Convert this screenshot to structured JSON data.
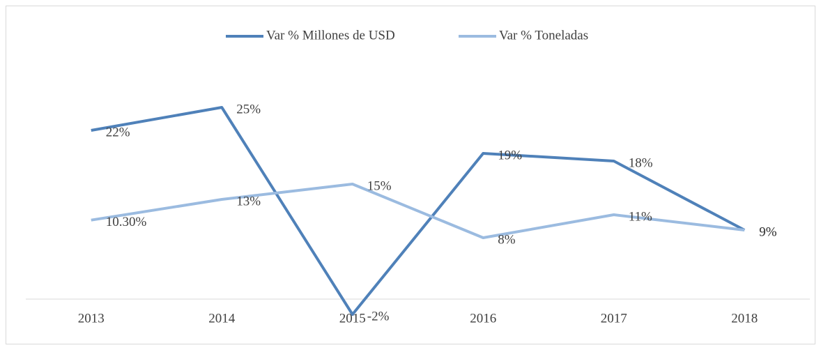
{
  "chart_data": {
    "type": "line",
    "categories": [
      "2013",
      "2014",
      "2015",
      "2016",
      "2017",
      "2018"
    ],
    "series": [
      {
        "name": "Var % Millones de USD",
        "color": "#4f81b9",
        "values": [
          22,
          25,
          -2,
          19,
          18,
          9
        ],
        "value_labels": [
          "22%",
          "25%",
          "-2%",
          "19%",
          "18%",
          "9%"
        ]
      },
      {
        "name": "Var % Toneladas",
        "color": "#9bbbe0",
        "values": [
          10.3,
          13,
          15,
          8,
          11,
          9
        ],
        "value_labels": [
          "10.30%",
          "13%",
          "15%",
          "8%",
          "11%",
          "9%"
        ]
      }
    ],
    "ylim": [
      -5,
      30
    ],
    "legend": "top"
  }
}
